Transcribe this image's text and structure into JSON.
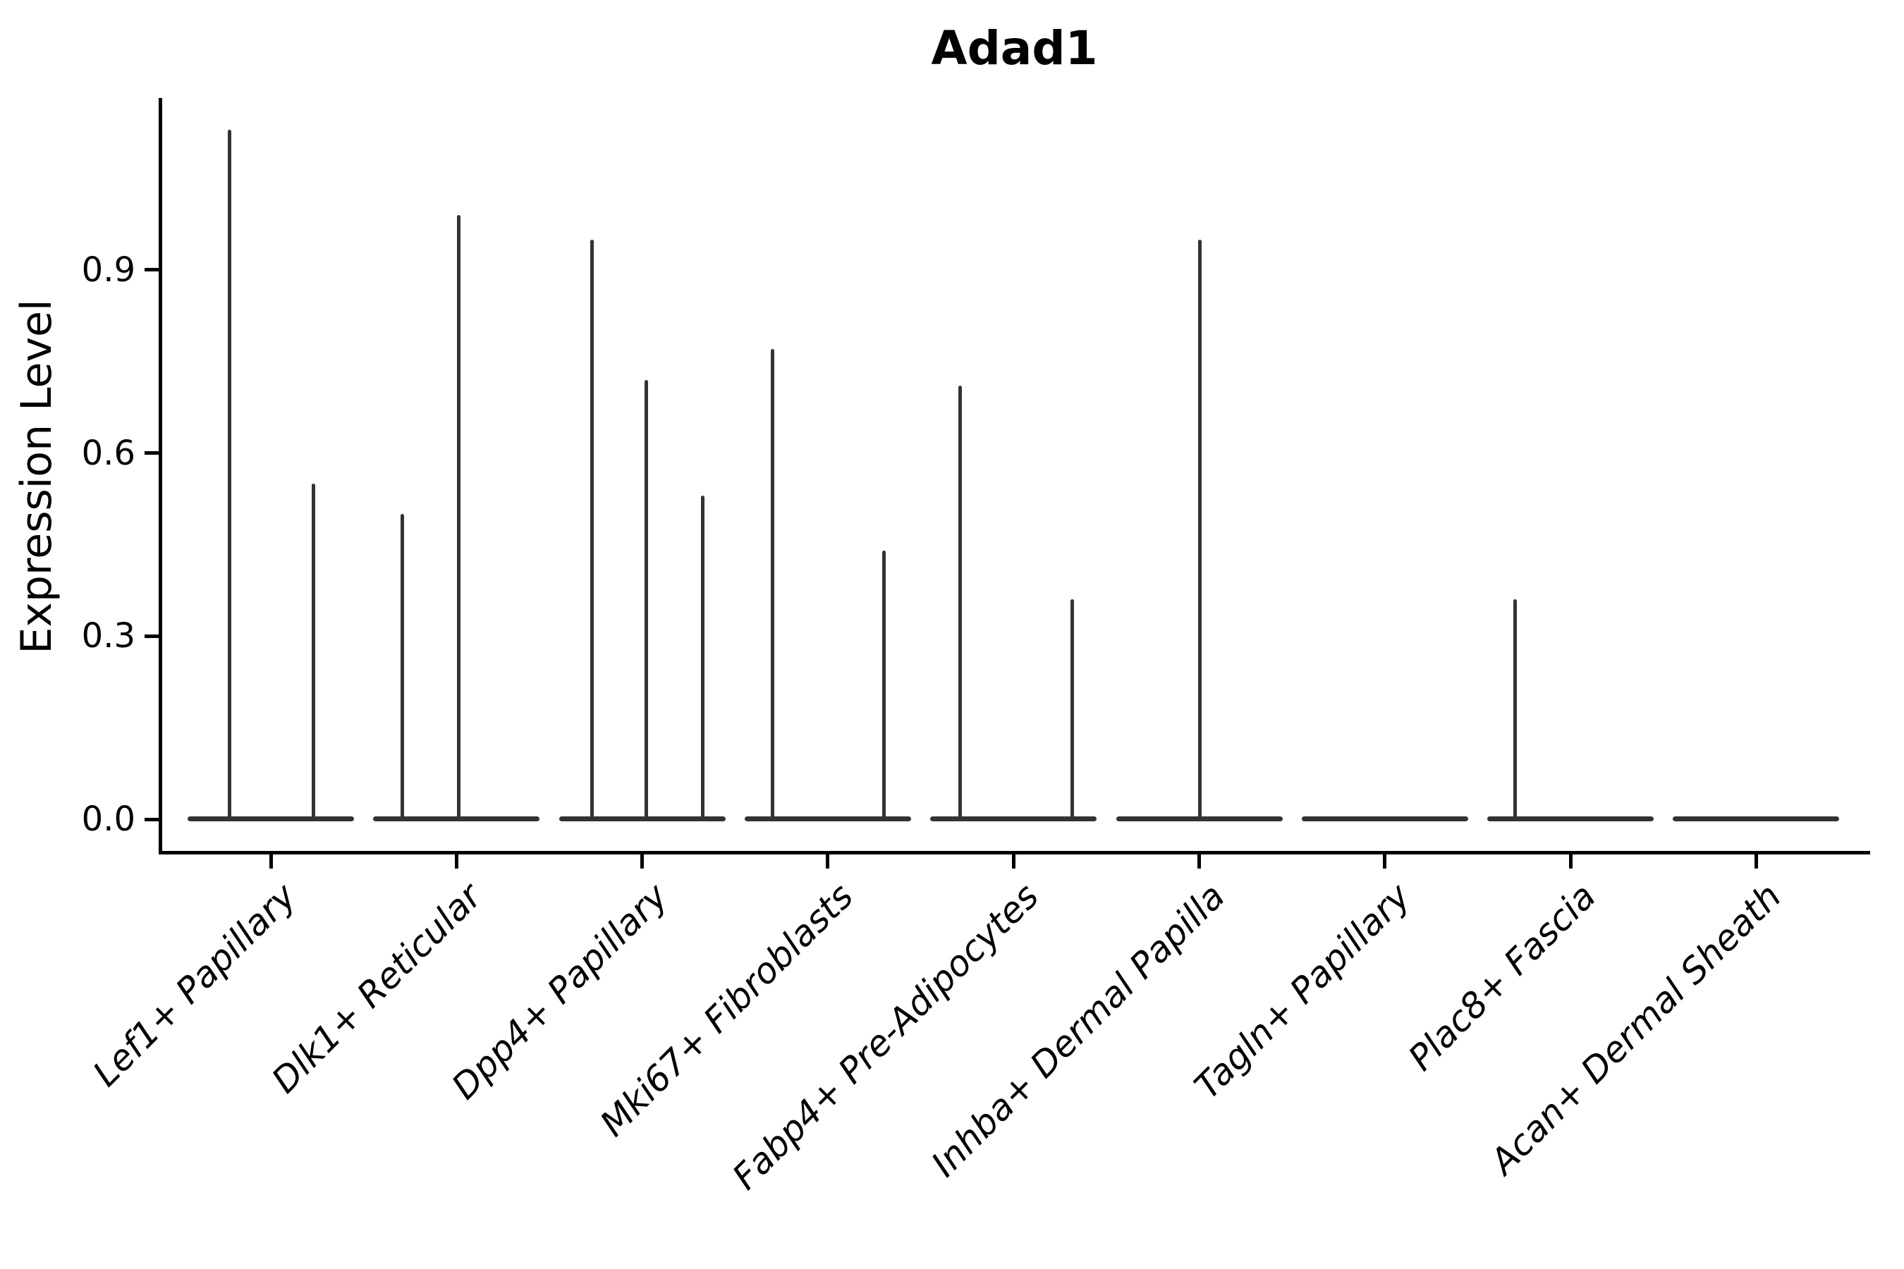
{
  "chart_data": {
    "type": "violin",
    "title": "Adad1",
    "ylabel": "Expression Level",
    "xlabel": "",
    "y_ticks": [
      "0.0",
      "0.3",
      "0.6",
      "0.9"
    ],
    "ylim": [
      -0.04,
      1.2
    ],
    "grid": false,
    "legend": false,
    "x_tick_rotation": 45,
    "style": {
      "violin_color": "#333333",
      "axis_color": "#000000",
      "text_color": "#000000",
      "background": "#ffffff"
    },
    "categories": [
      {
        "label": "Lef1+ Papillary",
        "base_value": 0.0,
        "spikes": [
          {
            "pos": -0.224,
            "max": 1.13
          },
          {
            "pos": 0.228,
            "max": 0.55
          }
        ]
      },
      {
        "label": "Dlk1+ Reticular",
        "base_value": 0.0,
        "spikes": [
          {
            "pos": -0.292,
            "max": 0.5
          },
          {
            "pos": 0.011,
            "max": 0.99
          }
        ]
      },
      {
        "label": "Dpp4+ Papillary",
        "base_value": 0.0,
        "spikes": [
          {
            "pos": -0.27,
            "max": 0.95
          },
          {
            "pos": 0.023,
            "max": 0.72
          },
          {
            "pos": 0.327,
            "max": 0.53
          }
        ]
      },
      {
        "label": "Mki67+ Fibroblasts",
        "base_value": 0.0,
        "spikes": [
          {
            "pos": -0.296,
            "max": 0.77
          },
          {
            "pos": 0.304,
            "max": 0.44
          }
        ]
      },
      {
        "label": "Fabp4+ Pre-Adipocytes",
        "base_value": 0.0,
        "spikes": [
          {
            "pos": -0.289,
            "max": 0.71
          },
          {
            "pos": 0.315,
            "max": 0.36
          }
        ]
      },
      {
        "label": "Inhba+ Dermal Papilla",
        "base_value": 0.0,
        "spikes": [
          {
            "pos": 0.004,
            "max": 0.95
          }
        ]
      },
      {
        "label": "Tagln+ Papillary",
        "base_value": 0.0,
        "spikes": []
      },
      {
        "label": "Plac8+ Fascia",
        "base_value": 0.0,
        "spikes": [
          {
            "pos": -0.3,
            "max": 0.36
          }
        ]
      },
      {
        "label": "Acan+ Dermal Sheath",
        "base_value": 0.0,
        "spikes": []
      }
    ]
  }
}
